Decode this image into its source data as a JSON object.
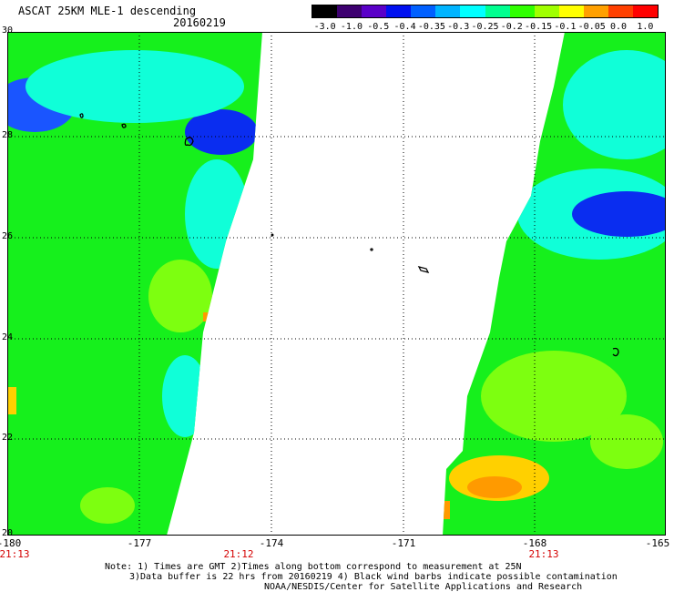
{
  "header": {
    "title": "ASCAT 25KM MLE-1 descending",
    "date": "20160219"
  },
  "colorbar": {
    "ticks": [
      "-3.0",
      "-1.0",
      "-0.5",
      "-0.4",
      "-0.35",
      "-0.3",
      "-0.25",
      "-0.2",
      "-0.15",
      "-0.1",
      "-0.05",
      "0.0",
      "1.0"
    ],
    "colors": [
      "#000000",
      "#3d0070",
      "#5a00c8",
      "#0010f0",
      "#0060ff",
      "#00b4ff",
      "#00ffff",
      "#00ff90",
      "#30ff00",
      "#a0ff00",
      "#ffff00",
      "#ffa000",
      "#ff4000",
      "#ff0000"
    ]
  },
  "map": {
    "lon_range": [
      -180,
      -165
    ],
    "lat_range": [
      20,
      30
    ],
    "x_ticks": [
      "-180",
      "-177",
      "-174",
      "-171",
      "-168",
      "-165"
    ],
    "y_ticks": [
      "30",
      "28",
      "26",
      "24",
      "22",
      "20"
    ],
    "pass_times": [
      "21:13",
      "21:12",
      "21:13"
    ],
    "swath_colors": {
      "bg": "#16f01c",
      "cyan": "#10ffd8",
      "blue": "#1a55ff",
      "deep_blue": "#0a2df0",
      "lime": "#7dff10",
      "yellow": "#ffd000",
      "orange": "#ff9a00"
    }
  },
  "notes": {
    "line1": "Note: 1) Times are GMT 2)Times along bottom correspond to measurement at 25N",
    "line2": "3)Data buffer is 22 hrs from 20160219 4) Black wind barbs indicate possible contamination",
    "line3": "NOAA/NESDIS/Center for Satellite Applications and Research"
  }
}
